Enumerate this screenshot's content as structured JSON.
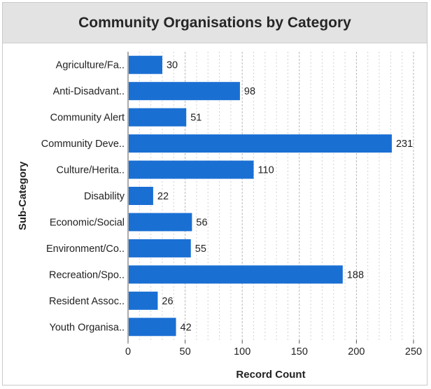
{
  "chart_data": {
    "type": "bar",
    "orientation": "horizontal",
    "title": "Community Organisations by Category",
    "xlabel": "Record Count",
    "ylabel": "Sub-Category",
    "categories": [
      "Agriculture/Fa..",
      "Anti-Disadvant..",
      "Community Alert",
      "Community Deve..",
      "Culture/Herita..",
      "Disability",
      "Economic/Social",
      "Environment/Co..",
      "Recreation/Spo..",
      "Resident Assoc..",
      "Youth Organisa.."
    ],
    "values": [
      30,
      98,
      51,
      231,
      110,
      22,
      56,
      55,
      188,
      26,
      42
    ],
    "xlim": [
      0,
      250
    ],
    "xticks": [
      0,
      50,
      100,
      150,
      200,
      250
    ],
    "grid": "vertical dashed",
    "bar_color": "#1a6fd3"
  }
}
